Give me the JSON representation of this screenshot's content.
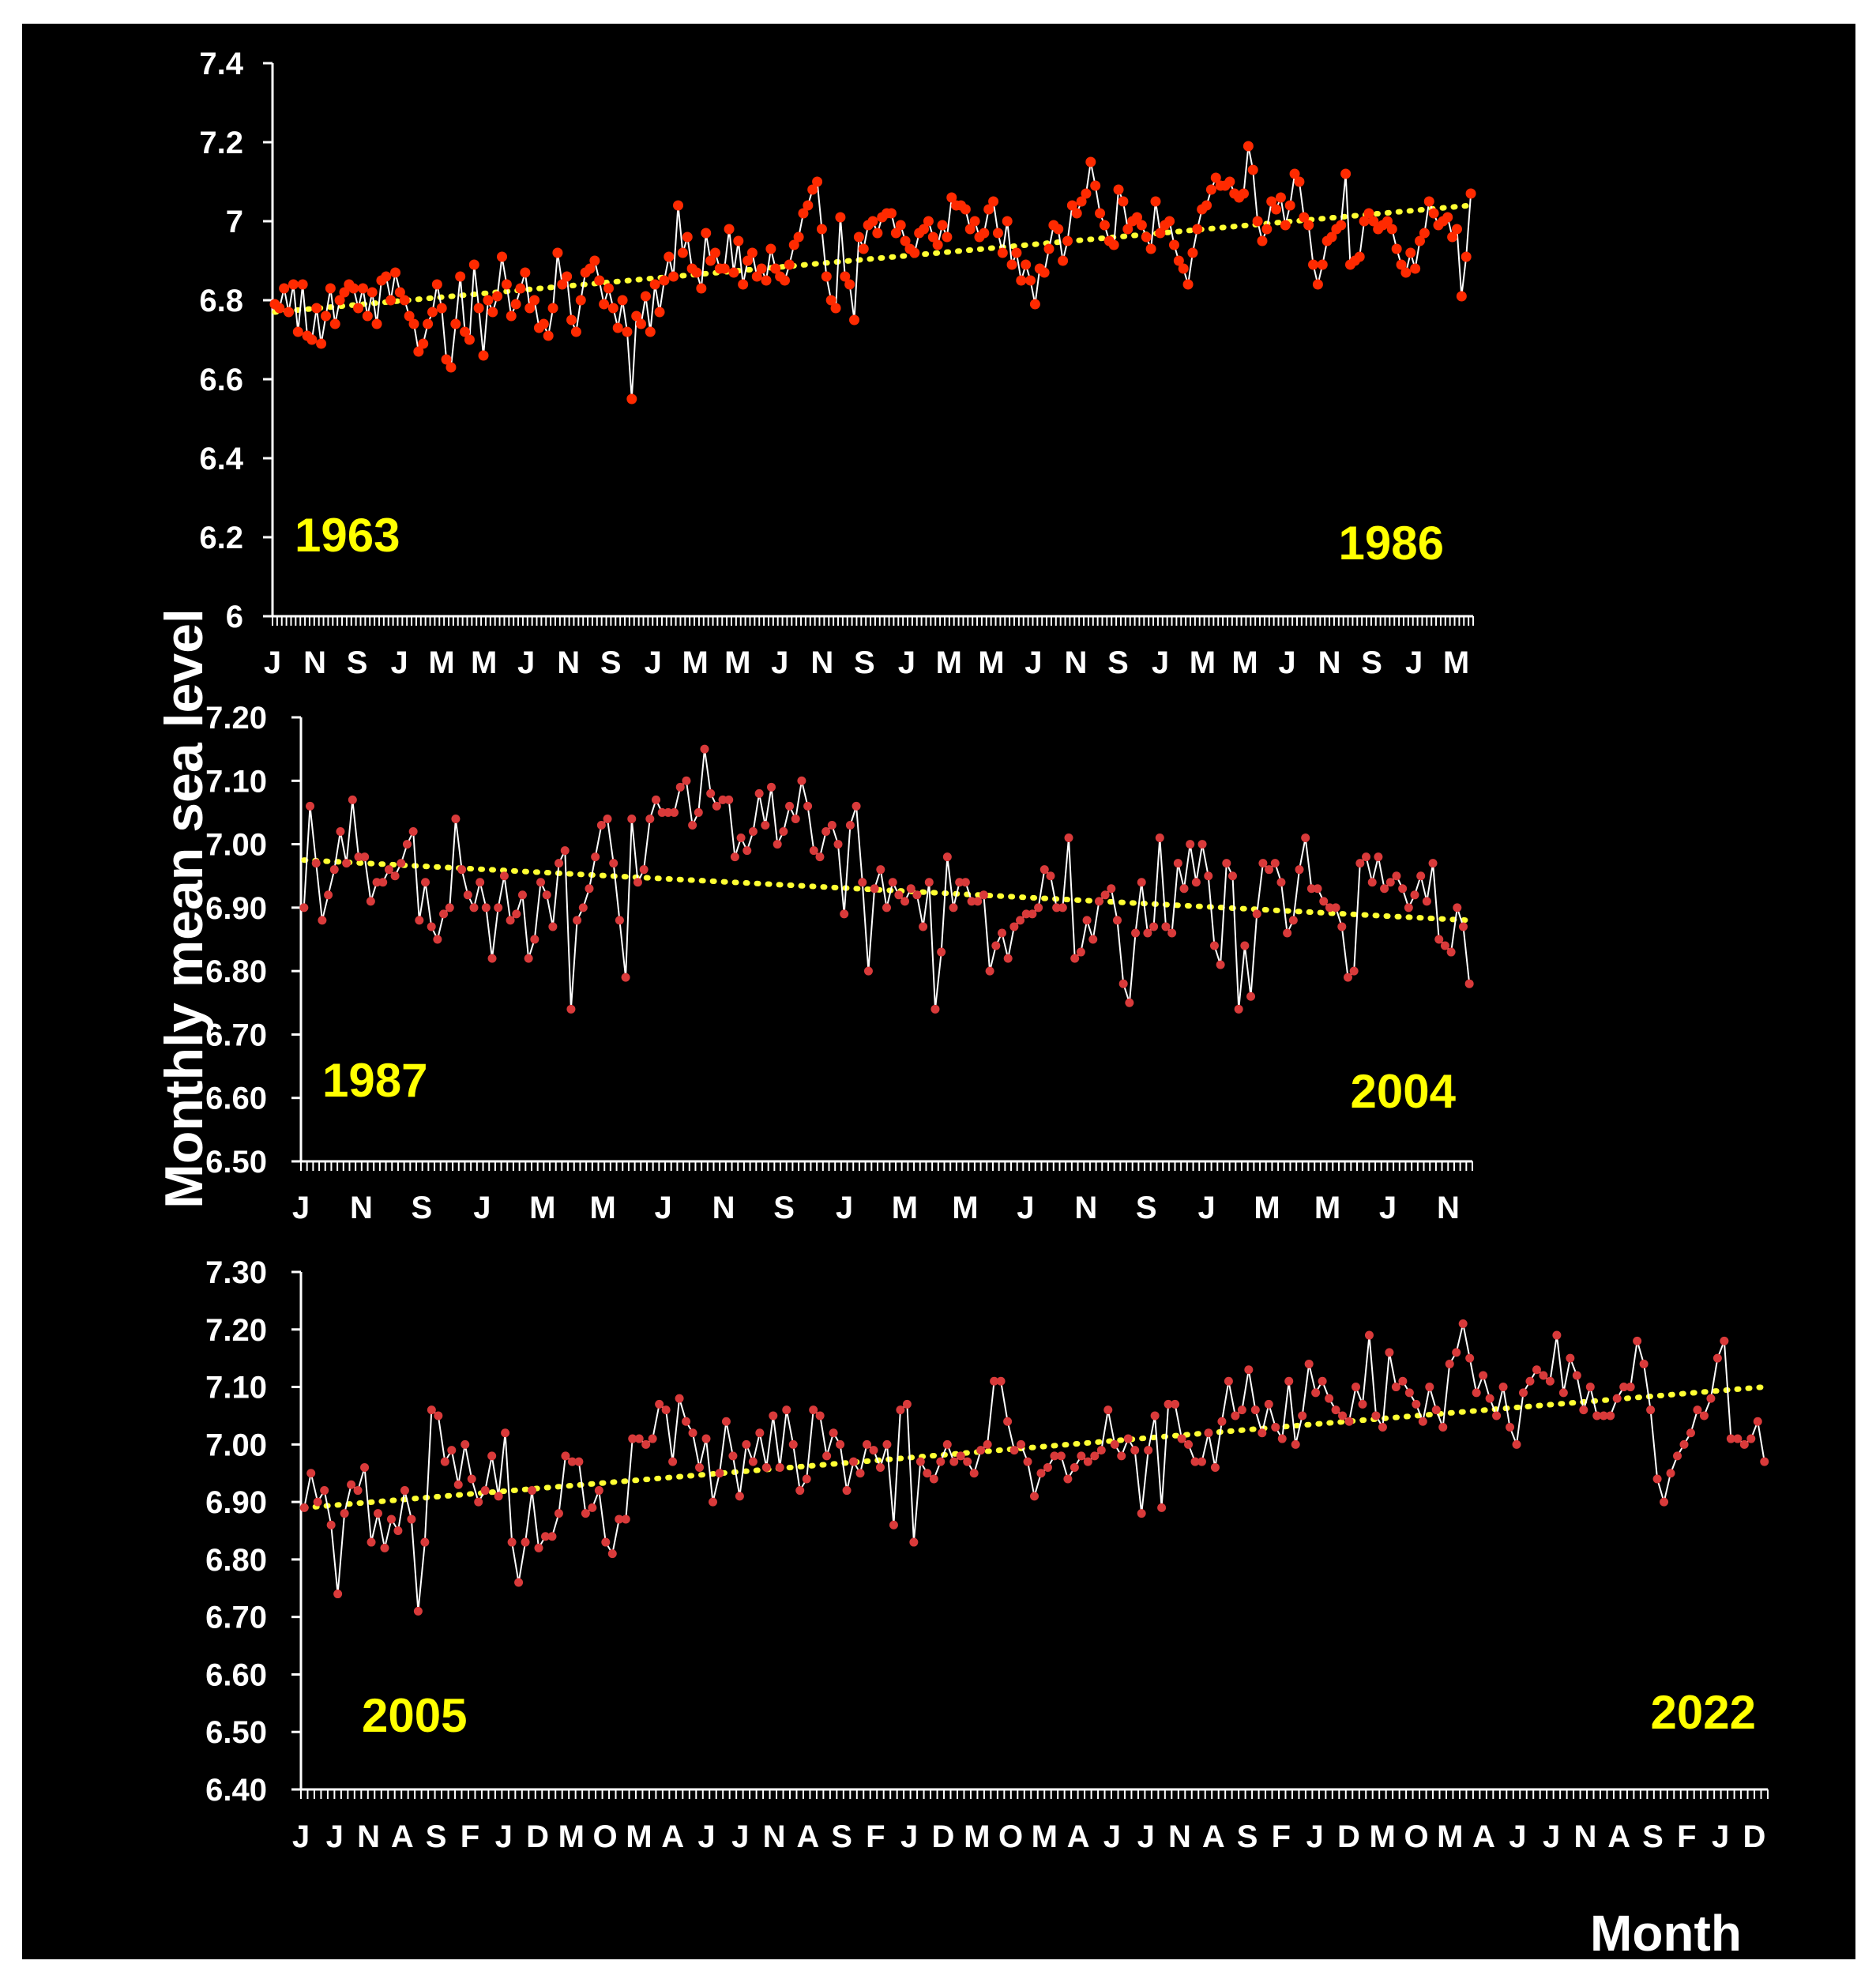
{
  "ylabel": "Monthly mean sea level",
  "xlabel": "Month",
  "colors": {
    "background": "#000000",
    "line": "#ffffff",
    "marker1": "#ff2a00",
    "marker2": "#d93a3a",
    "trend": "#ffff33",
    "yearLabel": "#ffff00"
  },
  "chart_data": [
    {
      "type": "line",
      "start_year": "1963",
      "end_year": "1986",
      "ylim": [
        6,
        7.4
      ],
      "yticks": [
        "7.4",
        "7.2",
        "7",
        "6.8",
        "6.6",
        "6.4",
        "6.2",
        "6"
      ],
      "month_labels": [
        "J",
        "N",
        "S",
        "J",
        "M",
        "M",
        "J",
        "N",
        "S",
        "J",
        "M",
        "M",
        "J",
        "N",
        "S",
        "J",
        "M",
        "M",
        "J",
        "N",
        "S",
        "J",
        "M",
        "M",
        "J",
        "N",
        "S",
        "J",
        "M"
      ],
      "trend": [
        6.77,
        7.04
      ],
      "values": [
        6.79,
        6.78,
        6.83,
        6.77,
        6.84,
        6.72,
        6.84,
        6.71,
        6.7,
        6.78,
        6.69,
        6.76,
        6.83,
        6.74,
        6.8,
        6.82,
        6.84,
        6.83,
        6.78,
        6.83,
        6.76,
        6.82,
        6.74,
        6.85,
        6.86,
        6.8,
        6.87,
        6.82,
        6.8,
        6.76,
        6.74,
        6.67,
        6.69,
        6.74,
        6.77,
        6.84,
        6.78,
        6.65,
        6.63,
        6.74,
        6.86,
        6.72,
        6.7,
        6.89,
        6.78,
        6.66,
        6.8,
        6.77,
        6.81,
        6.91,
        6.84,
        6.76,
        6.79,
        6.83,
        6.87,
        6.78,
        6.8,
        6.73,
        6.74,
        6.71,
        6.78,
        6.92,
        6.84,
        6.86,
        6.75,
        6.72,
        6.8,
        6.87,
        6.88,
        6.9,
        6.85,
        6.79,
        6.83,
        6.78,
        6.73,
        6.8,
        6.72,
        6.55,
        6.76,
        6.74,
        6.81,
        6.72,
        6.84,
        6.77,
        6.85,
        6.91,
        6.86,
        7.04,
        6.92,
        6.96,
        6.88,
        6.87,
        6.83,
        6.97,
        6.9,
        6.92,
        6.88,
        6.88,
        6.98,
        6.87,
        6.95,
        6.84,
        6.9,
        6.92,
        6.86,
        6.88,
        6.85,
        6.93,
        6.88,
        6.86,
        6.85,
        6.89,
        6.94,
        6.96,
        7.02,
        7.04,
        7.08,
        7.1,
        6.98,
        6.86,
        6.8,
        6.78,
        7.01,
        6.86,
        6.84,
        6.75,
        6.96,
        6.93,
        6.99,
        7.0,
        6.97,
        7.01,
        7.02,
        7.02,
        6.97,
        6.99,
        6.95,
        6.93,
        6.92,
        6.97,
        6.98,
        7.0,
        6.96,
        6.94,
        6.99,
        6.96,
        7.06,
        7.04,
        7.04,
        7.03,
        6.98,
        7.0,
        6.96,
        6.97,
        7.03,
        7.05,
        6.97,
        6.92,
        7.0,
        6.89,
        6.92,
        6.85,
        6.89,
        6.85,
        6.79,
        6.88,
        6.87,
        6.93,
        6.99,
        6.98,
        6.9,
        6.95,
        7.04,
        7.02,
        7.05,
        7.07,
        7.15,
        7.09,
        7.02,
        6.99,
        6.95,
        6.94,
        7.08,
        7.05,
        6.98,
        7.0,
        7.01,
        6.99,
        6.96,
        6.93,
        7.05,
        6.97,
        6.99,
        7.0,
        6.94,
        6.9,
        6.88,
        6.84,
        6.92,
        6.98,
        7.03,
        7.04,
        7.08,
        7.11,
        7.09,
        7.09,
        7.1,
        7.07,
        7.06,
        7.07,
        7.19,
        7.13,
        7.0,
        6.95,
        6.98,
        7.05,
        7.03,
        7.06,
        6.99,
        7.04,
        7.12,
        7.1,
        7.01,
        6.99,
        6.89,
        6.84,
        6.89,
        6.95,
        6.96,
        6.98,
        6.99,
        7.12,
        6.89,
        6.9,
        6.91,
        7.0,
        7.02,
        7.0,
        6.98,
        6.99,
        7.0,
        6.98,
        6.93,
        6.89,
        6.87,
        6.92,
        6.88,
        6.95,
        6.97,
        7.05,
        7.02,
        6.99,
        7.0,
        7.01,
        6.96,
        6.98,
        6.81,
        6.91,
        7.07
      ]
    },
    {
      "type": "line",
      "start_year": "1987",
      "end_year": "2004",
      "ylim": [
        6.5,
        7.2
      ],
      "yticks": [
        "7.20",
        "7.10",
        "7.00",
        "6.90",
        "6.80",
        "6.70",
        "6.60",
        "6.50"
      ],
      "month_labels": [
        "J",
        "N",
        "S",
        "J",
        "M",
        "M",
        "J",
        "N",
        "S",
        "J",
        "M",
        "M",
        "J",
        "N",
        "S",
        "J",
        "M",
        "M",
        "J",
        "N"
      ],
      "trend": [
        6.975,
        6.88
      ],
      "values": [
        6.9,
        7.06,
        6.97,
        6.88,
        6.92,
        6.96,
        7.02,
        6.97,
        7.07,
        6.98,
        6.98,
        6.91,
        6.94,
        6.94,
        6.96,
        6.95,
        6.97,
        7.0,
        7.02,
        6.88,
        6.94,
        6.87,
        6.85,
        6.89,
        6.9,
        7.04,
        6.96,
        6.92,
        6.9,
        6.94,
        6.9,
        6.82,
        6.9,
        6.95,
        6.88,
        6.89,
        6.92,
        6.82,
        6.85,
        6.94,
        6.92,
        6.87,
        6.97,
        6.99,
        6.74,
        6.88,
        6.9,
        6.93,
        6.98,
        7.03,
        7.04,
        6.97,
        6.88,
        6.79,
        7.04,
        6.94,
        6.96,
        7.04,
        7.07,
        7.05,
        7.05,
        7.05,
        7.09,
        7.1,
        7.03,
        7.05,
        7.15,
        7.08,
        7.06,
        7.07,
        7.07,
        6.98,
        7.01,
        6.99,
        7.02,
        7.08,
        7.03,
        7.09,
        7.0,
        7.02,
        7.06,
        7.04,
        7.1,
        7.06,
        6.99,
        6.98,
        7.02,
        7.03,
        7.0,
        6.89,
        7.03,
        7.06,
        6.94,
        6.8,
        6.93,
        6.96,
        6.9,
        6.94,
        6.92,
        6.91,
        6.93,
        6.92,
        6.87,
        6.94,
        6.74,
        6.83,
        6.98,
        6.9,
        6.94,
        6.94,
        6.91,
        6.91,
        6.92,
        6.8,
        6.84,
        6.86,
        6.82,
        6.87,
        6.88,
        6.89,
        6.89,
        6.9,
        6.96,
        6.95,
        6.9,
        6.9,
        7.01,
        6.82,
        6.83,
        6.88,
        6.85,
        6.91,
        6.92,
        6.93,
        6.88,
        6.78,
        6.75,
        6.86,
        6.94,
        6.86,
        6.87,
        7.01,
        6.87,
        6.86,
        6.97,
        6.93,
        7.0,
        6.94,
        7.0,
        6.95,
        6.84,
        6.81,
        6.97,
        6.95,
        6.74,
        6.84,
        6.76,
        6.89,
        6.97,
        6.96,
        6.97,
        6.94,
        6.86,
        6.88,
        6.96,
        7.01,
        6.93,
        6.93,
        6.91,
        6.9,
        6.9,
        6.87,
        6.79,
        6.8,
        6.97,
        6.98,
        6.94,
        6.98,
        6.93,
        6.94,
        6.95,
        6.93,
        6.9,
        6.92,
        6.95,
        6.91,
        6.97,
        6.85,
        6.84,
        6.83,
        6.9,
        6.87,
        6.78
      ]
    },
    {
      "type": "line",
      "start_year": "2005",
      "end_year": "2022",
      "ylim": [
        6.4,
        7.3
      ],
      "yticks": [
        "7.30",
        "7.20",
        "7.10",
        "7.00",
        "6.90",
        "6.80",
        "6.70",
        "6.60",
        "6.50",
        "6.40"
      ],
      "month_labels": [
        "J",
        "J",
        "N",
        "A",
        "S",
        "F",
        "J",
        "D",
        "M",
        "O",
        "M",
        "A",
        "J",
        "J",
        "N",
        "A",
        "S",
        "F",
        "J",
        "D",
        "M",
        "O",
        "M",
        "A",
        "J",
        "J",
        "N",
        "A",
        "S",
        "F",
        "J",
        "D",
        "M",
        "O",
        "M",
        "A",
        "J",
        "J",
        "N",
        "A",
        "S",
        "F",
        "J",
        "D"
      ],
      "trend": [
        6.89,
        7.1
      ],
      "values": [
        6.89,
        6.95,
        6.9,
        6.92,
        6.86,
        6.74,
        6.88,
        6.93,
        6.92,
        6.96,
        6.83,
        6.88,
        6.82,
        6.87,
        6.85,
        6.92,
        6.87,
        6.71,
        6.83,
        7.06,
        7.05,
        6.97,
        6.99,
        6.93,
        7.0,
        6.94,
        6.9,
        6.92,
        6.98,
        6.91,
        7.02,
        6.83,
        6.76,
        6.83,
        6.92,
        6.82,
        6.84,
        6.84,
        6.88,
        6.98,
        6.97,
        6.97,
        6.88,
        6.89,
        6.92,
        6.83,
        6.81,
        6.87,
        6.87,
        7.01,
        7.01,
        7.0,
        7.01,
        7.07,
        7.06,
        6.97,
        7.08,
        7.04,
        7.02,
        6.96,
        7.01,
        6.9,
        6.95,
        7.04,
        6.98,
        6.91,
        7.0,
        6.97,
        7.02,
        6.96,
        7.05,
        6.96,
        7.06,
        7.0,
        6.92,
        6.94,
        7.06,
        7.05,
        6.98,
        7.02,
        7.0,
        6.92,
        6.97,
        6.95,
        7.0,
        6.99,
        6.96,
        7.0,
        6.86,
        7.06,
        7.07,
        6.83,
        6.97,
        6.95,
        6.94,
        6.97,
        7.0,
        6.97,
        6.98,
        6.97,
        6.95,
        6.99,
        7.0,
        7.11,
        7.11,
        7.04,
        6.99,
        7.0,
        6.97,
        6.91,
        6.95,
        6.96,
        6.98,
        6.98,
        6.94,
        6.96,
        6.98,
        6.97,
        6.98,
        6.99,
        7.06,
        7.0,
        6.98,
        7.01,
        6.99,
        6.88,
        6.99,
        7.05,
        6.89,
        7.07,
        7.07,
        7.01,
        7.0,
        6.97,
        6.97,
        7.02,
        6.96,
        7.04,
        7.11,
        7.05,
        7.06,
        7.13,
        7.06,
        7.02,
        7.07,
        7.03,
        7.01,
        7.11,
        7.0,
        7.05,
        7.14,
        7.09,
        7.11,
        7.08,
        7.06,
        7.05,
        7.04,
        7.1,
        7.07,
        7.19,
        7.05,
        7.03,
        7.16,
        7.1,
        7.11,
        7.09,
        7.07,
        7.04,
        7.1,
        7.06,
        7.03,
        7.14,
        7.16,
        7.21,
        7.15,
        7.09,
        7.12,
        7.08,
        7.05,
        7.1,
        7.03,
        7.0,
        7.09,
        7.11,
        7.13,
        7.12,
        7.11,
        7.19,
        7.09,
        7.15,
        7.12,
        7.06,
        7.1,
        7.05,
        7.05,
        7.05,
        7.08,
        7.1,
        7.1,
        7.18,
        7.14,
        7.06,
        6.94,
        6.9,
        6.95,
        6.98,
        7.0,
        7.02,
        7.06,
        7.05,
        7.08,
        7.15,
        7.18,
        7.01,
        7.01,
        7.0,
        7.01,
        7.04,
        6.97
      ]
    }
  ]
}
